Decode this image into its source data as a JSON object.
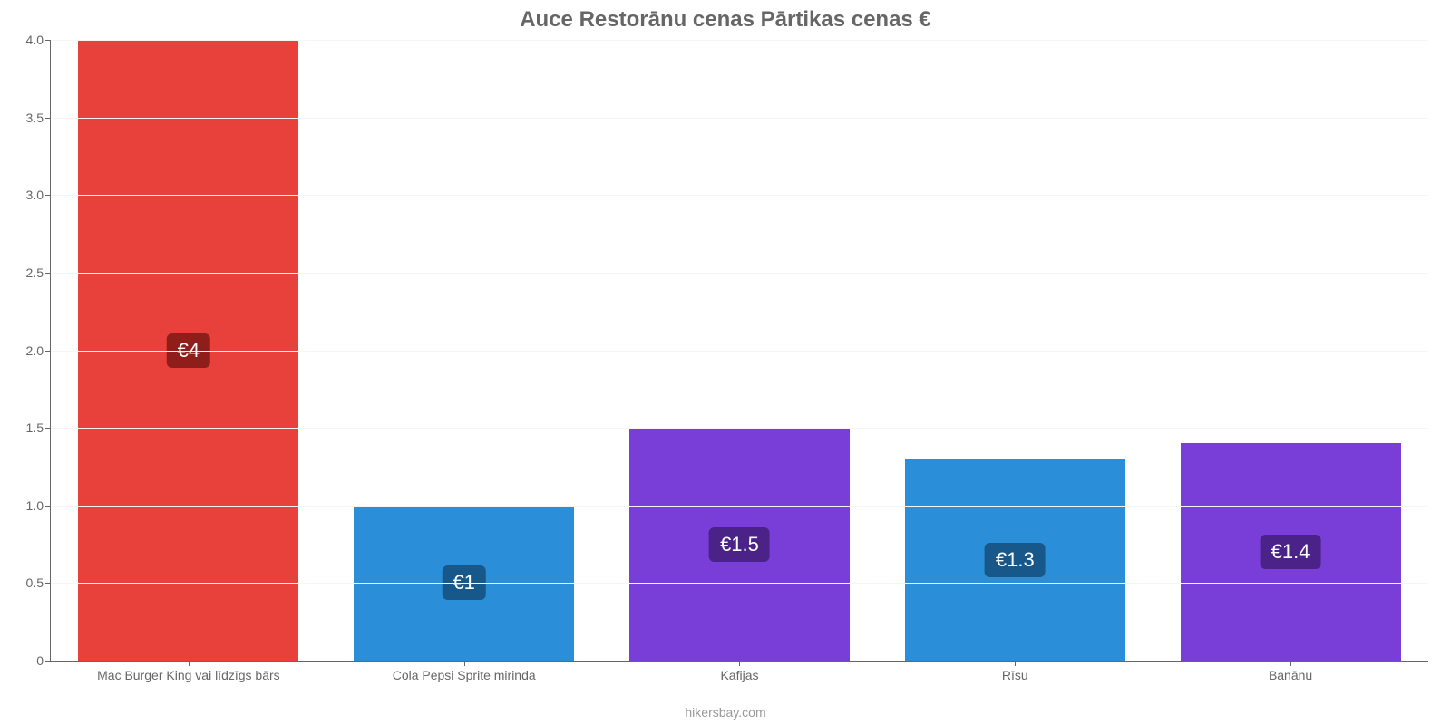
{
  "chart": {
    "type": "bar",
    "title": "Auce Restorānu cenas Pārtikas cenas €",
    "title_fontsize": 24,
    "title_color": "#666666",
    "categories": [
      "Mac Burger King vai līdzīgs bārs",
      "Cola Pepsi Sprite mirinda",
      "Kafijas",
      "Rīsu",
      "Banānu"
    ],
    "values": [
      4,
      1,
      1.5,
      1.3,
      1.4
    ],
    "value_labels": [
      "€4",
      "€1",
      "€1.5",
      "€1.3",
      "€1.4"
    ],
    "bar_colors": [
      "#e8403a",
      "#2a8fd8",
      "#7a3ed8",
      "#2a8fd8",
      "#7a3ed8"
    ],
    "badge_colors": [
      "#8f1e1a",
      "#17578a",
      "#4a2288",
      "#17578a",
      "#4a2288"
    ],
    "ylim": [
      0,
      4
    ],
    "ytick_step": 0.5,
    "ytick_labels": [
      "0",
      "0.5",
      "1.0",
      "1.5",
      "2.0",
      "2.5",
      "3.0",
      "3.5",
      "4.0"
    ],
    "grid_color": "#f5f5f5",
    "axis_color": "#666666",
    "label_fontsize": 14,
    "label_color": "#666666",
    "bar_width_pct": 80,
    "background_color": "#ffffff",
    "value_badge_fontsize": 22,
    "value_badge_text_color": "#ffffff"
  },
  "attribution": "hikersbay.com",
  "attribution_color": "#999999"
}
